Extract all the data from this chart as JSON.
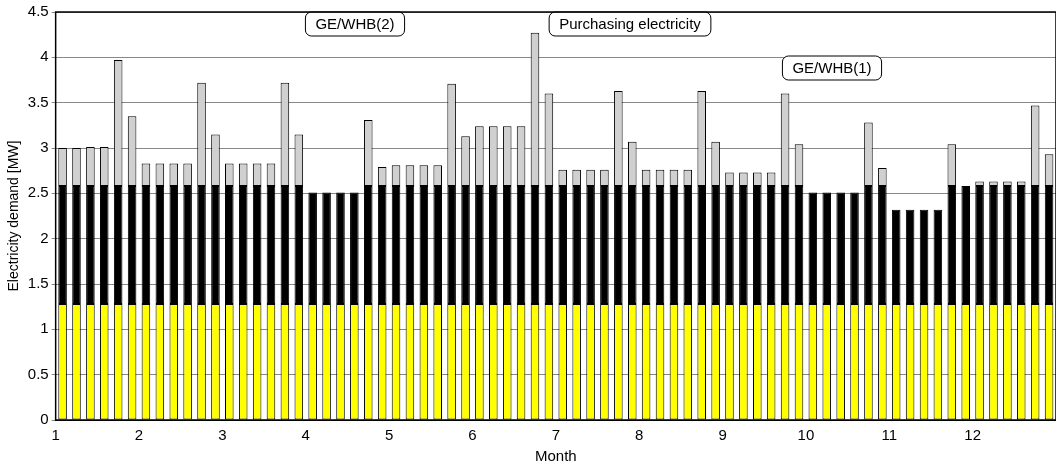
{
  "chart_data": {
    "type": "bar",
    "xlabel": "Month",
    "ylabel": "Electricity demand [MW]",
    "stacked": true,
    "grid": "y",
    "xlim": [
      1,
      13
    ],
    "xticks": [
      1,
      2,
      3,
      4,
      5,
      6,
      7,
      8,
      9,
      10,
      11,
      12
    ],
    "ylim": [
      0,
      4.5
    ],
    "yticks": [
      0,
      0.5,
      1,
      1.5,
      2,
      2.5,
      3,
      3.5,
      4,
      4.5
    ],
    "x": [
      1.083,
      1.25,
      1.417,
      1.583,
      1.75,
      1.917,
      2.083,
      2.25,
      2.417,
      2.583,
      2.75,
      2.917,
      3.083,
      3.25,
      3.417,
      3.583,
      3.75,
      3.917,
      4.083,
      4.25,
      4.417,
      4.583,
      4.75,
      4.917,
      5.083,
      5.25,
      5.417,
      5.583,
      5.75,
      5.917,
      6.083,
      6.25,
      6.417,
      6.583,
      6.75,
      6.917,
      7.083,
      7.25,
      7.417,
      7.583,
      7.75,
      7.917,
      8.083,
      8.25,
      8.417,
      8.583,
      8.75,
      8.917,
      9.083,
      9.25,
      9.417,
      9.583,
      9.75,
      9.917,
      10.083,
      10.25,
      10.417,
      10.583,
      10.75,
      10.917,
      11.083,
      11.25,
      11.417,
      11.583,
      11.75,
      11.917,
      12.083,
      12.25,
      12.417,
      12.583,
      12.75,
      12.917
    ],
    "series": [
      {
        "color": "#ffff00",
        "values": [
          1.28,
          1.28,
          1.28,
          1.28,
          1.28,
          1.28,
          1.28,
          1.28,
          1.28,
          1.28,
          1.28,
          1.28,
          1.28,
          1.28,
          1.28,
          1.28,
          1.28,
          1.28,
          1.28,
          1.28,
          1.28,
          1.28,
          1.28,
          1.28,
          1.28,
          1.28,
          1.28,
          1.28,
          1.28,
          1.28,
          1.28,
          1.28,
          1.28,
          1.28,
          1.28,
          1.28,
          1.28,
          1.28,
          1.28,
          1.28,
          1.28,
          1.28,
          1.28,
          1.28,
          1.28,
          1.28,
          1.28,
          1.28,
          1.28,
          1.28,
          1.28,
          1.28,
          1.28,
          1.28,
          1.28,
          1.28,
          1.28,
          1.28,
          1.28,
          1.28,
          1.28,
          1.28,
          1.28,
          1.28,
          1.28,
          1.28,
          1.28,
          1.28,
          1.28,
          1.28,
          1.28,
          1.28
        ]
      },
      {
        "color": "#000000",
        "values": [
          1.3,
          1.3,
          1.3,
          1.3,
          1.3,
          1.3,
          1.3,
          1.3,
          1.3,
          1.3,
          1.3,
          1.3,
          1.3,
          1.3,
          1.3,
          1.3,
          1.3,
          1.3,
          1.23,
          1.23,
          1.23,
          1.23,
          1.3,
          1.3,
          1.3,
          1.3,
          1.3,
          1.3,
          1.3,
          1.3,
          1.3,
          1.3,
          1.3,
          1.3,
          1.3,
          1.3,
          1.3,
          1.3,
          1.3,
          1.3,
          1.3,
          1.3,
          1.3,
          1.3,
          1.3,
          1.3,
          1.3,
          1.3,
          1.3,
          1.3,
          1.3,
          1.3,
          1.3,
          1.3,
          1.23,
          1.23,
          1.23,
          1.23,
          1.3,
          1.3,
          1.04,
          1.04,
          1.04,
          1.04,
          1.3,
          1.3,
          1.3,
          1.3,
          1.3,
          1.3,
          1.3,
          1.3
        ]
      },
      {
        "color": "#d0d0d0",
        "values": [
          0.42,
          0.42,
          0.43,
          0.43,
          1.39,
          0.77,
          0.25,
          0.25,
          0.25,
          0.25,
          1.14,
          0.57,
          0.25,
          0.25,
          0.25,
          0.25,
          1.14,
          0.57,
          0,
          0,
          0,
          0,
          0.73,
          0.21,
          0.23,
          0.23,
          0.23,
          0.23,
          1.13,
          0.55,
          0.66,
          0.66,
          0.66,
          0.66,
          1.69,
          1.02,
          0.18,
          0.18,
          0.18,
          0.18,
          1.05,
          0.49,
          0.18,
          0.18,
          0.18,
          0.18,
          1.05,
          0.49,
          0.15,
          0.15,
          0.15,
          0.15,
          1.02,
          0.46,
          0,
          0,
          0,
          0,
          0.7,
          0.2,
          0,
          0,
          0,
          0,
          0.46,
          0,
          0.05,
          0.05,
          0.05,
          0.05,
          0.89,
          0.35
        ]
      }
    ],
    "annotations": [
      "GE/WHB(2)",
      "Purchasing electricity",
      "GE/WHB(1)"
    ]
  }
}
